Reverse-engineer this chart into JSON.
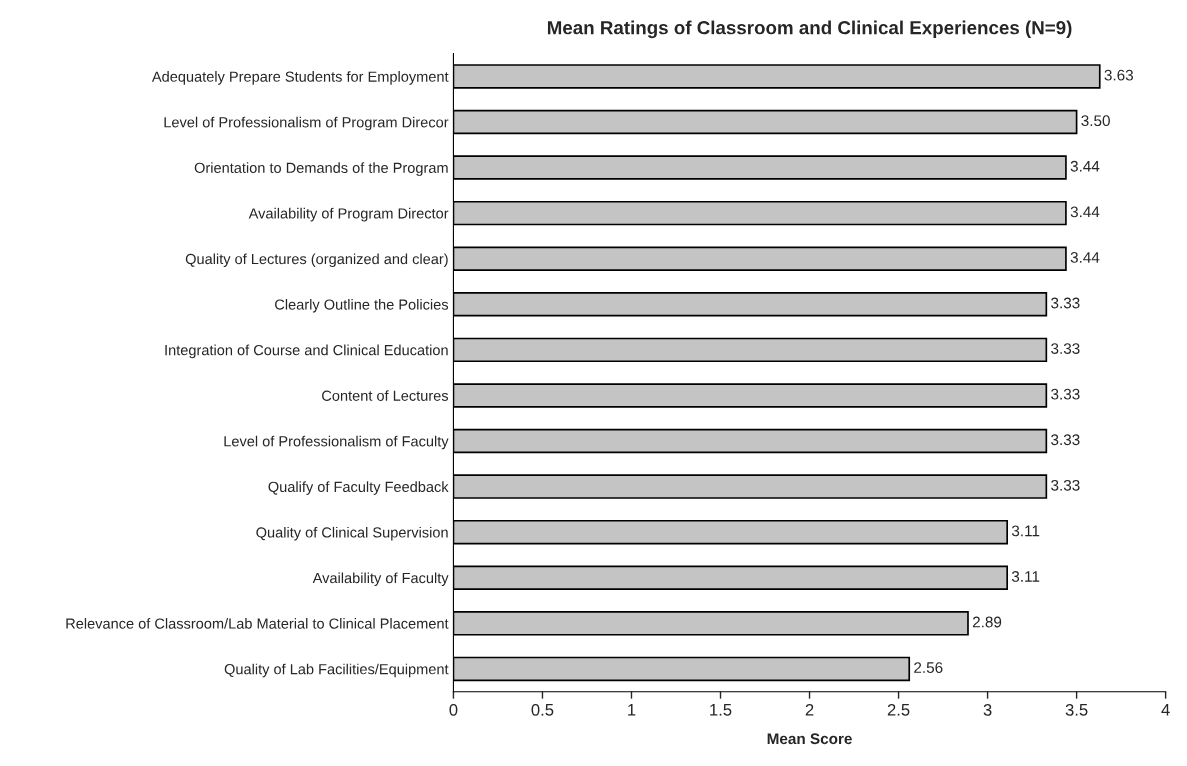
{
  "chart_data": {
    "type": "bar",
    "orientation": "horizontal",
    "title": "Mean Ratings of Classroom and Clinical Experiences (N=9)",
    "xlabel": "Mean Score",
    "categories": [
      "Adequately Prepare Students for Employment",
      "Level of Professionalism of Program Direcor",
      "Orientation to Demands of the Program",
      "Availability of Program Director",
      "Quality of Lectures (organized and clear)",
      "Clearly Outline the Policies",
      "Integration of Course and Clinical Education",
      "Content of Lectures",
      "Level of Professionalism of Faculty",
      "Qualify of Faculty Feedback",
      "Quality of Clinical Supervision",
      "Availability of Faculty",
      "Relevance of Classroom/Lab Material to Clinical Placement",
      "Quality of Lab Facilities/Equipment"
    ],
    "values": [
      3.63,
      3.5,
      3.44,
      3.44,
      3.44,
      3.33,
      3.33,
      3.33,
      3.33,
      3.33,
      3.11,
      3.11,
      2.89,
      2.56
    ],
    "value_labels": [
      "3.63",
      "3.50",
      "3.44",
      "3.44",
      "3.44",
      "3.33",
      "3.33",
      "3.33",
      "3.33",
      "3.33",
      "3.11",
      "3.11",
      "2.89",
      "2.56"
    ],
    "color": "#c4c4c4",
    "xlim": [
      0,
      4
    ],
    "xticks": [
      0,
      0.5,
      1,
      1.5,
      2,
      2.5,
      3,
      3.5,
      4
    ],
    "grid": false,
    "legend": false
  }
}
